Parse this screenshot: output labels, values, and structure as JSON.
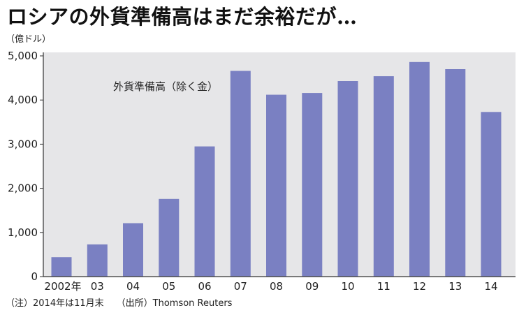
{
  "header": {
    "title": "ロシアの外貨準備高はまだ余裕だが…",
    "unit_label": "（億ドル）"
  },
  "footer": {
    "note": "（注）2014年は11月末",
    "source": "（出所）Thomson Reuters"
  },
  "colors": {
    "bar": "#7a80c2",
    "plot_background": "#e6e6e8",
    "axis": "#333333"
  },
  "chart_data": {
    "type": "bar",
    "title": "ロシアの外貨準備高はまだ余裕だが…",
    "ylabel": "（億ドル）",
    "xlabel": "",
    "series_label": "外貨準備高（除く金）",
    "categories": [
      "2002年",
      "03",
      "04",
      "05",
      "06",
      "07",
      "08",
      "09",
      "10",
      "11",
      "12",
      "13",
      "14"
    ],
    "values": [
      440,
      730,
      1210,
      1760,
      2950,
      4660,
      4120,
      4160,
      4430,
      4540,
      4860,
      4700,
      3730
    ],
    "ylim": [
      0,
      5000
    ],
    "yticks": [
      0,
      1000,
      2000,
      3000,
      4000,
      5000
    ],
    "ytick_labels": [
      "0",
      "1,000",
      "2,000",
      "3,000",
      "4,000",
      "5,000"
    ],
    "grid": false,
    "legend": "none"
  }
}
